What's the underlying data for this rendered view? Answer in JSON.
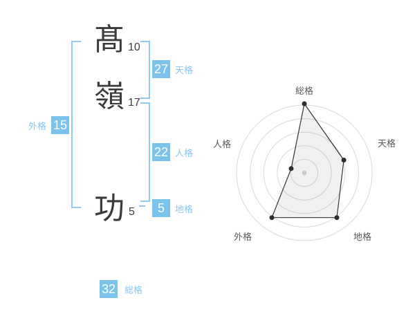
{
  "name_panel": {
    "characters": [
      {
        "char": "髙",
        "strokes": "10"
      },
      {
        "char": "嶺",
        "strokes": "17"
      },
      {
        "char": "功",
        "strokes": "5"
      }
    ],
    "kaku": {
      "tenkaku": {
        "value": "27",
        "label": "天格"
      },
      "jinkaku": {
        "value": "22",
        "label": "人格"
      },
      "chikaku": {
        "value": "5",
        "label": "地格"
      },
      "gaikaku": {
        "value": "15",
        "label": "外格"
      },
      "soukaku": {
        "value": "32",
        "label": "総格"
      }
    }
  },
  "colors": {
    "accent_blue": "#7cc3eb",
    "bracket_blue": "#8fcbef",
    "label_blue": "#85c8ef",
    "kanji_dark": "#3b3b3b",
    "chart_ring_gray": "#d9d9d9",
    "chart_line_dark": "#333333",
    "chart_dot_dark": "#2e2e2e",
    "chart_center_dot": "#c9c9c9",
    "chart_label_gray": "#595959"
  },
  "chart_data": {
    "type": "radar",
    "categories": [
      "総格",
      "天格",
      "地格",
      "外格",
      "人格"
    ],
    "values": [
      5,
      3,
      4,
      4,
      1
    ],
    "max": 5,
    "rings": 5,
    "start_angle_deg": -90,
    "direction": "clockwise",
    "grid": "concentric-circles",
    "legend": "none"
  }
}
